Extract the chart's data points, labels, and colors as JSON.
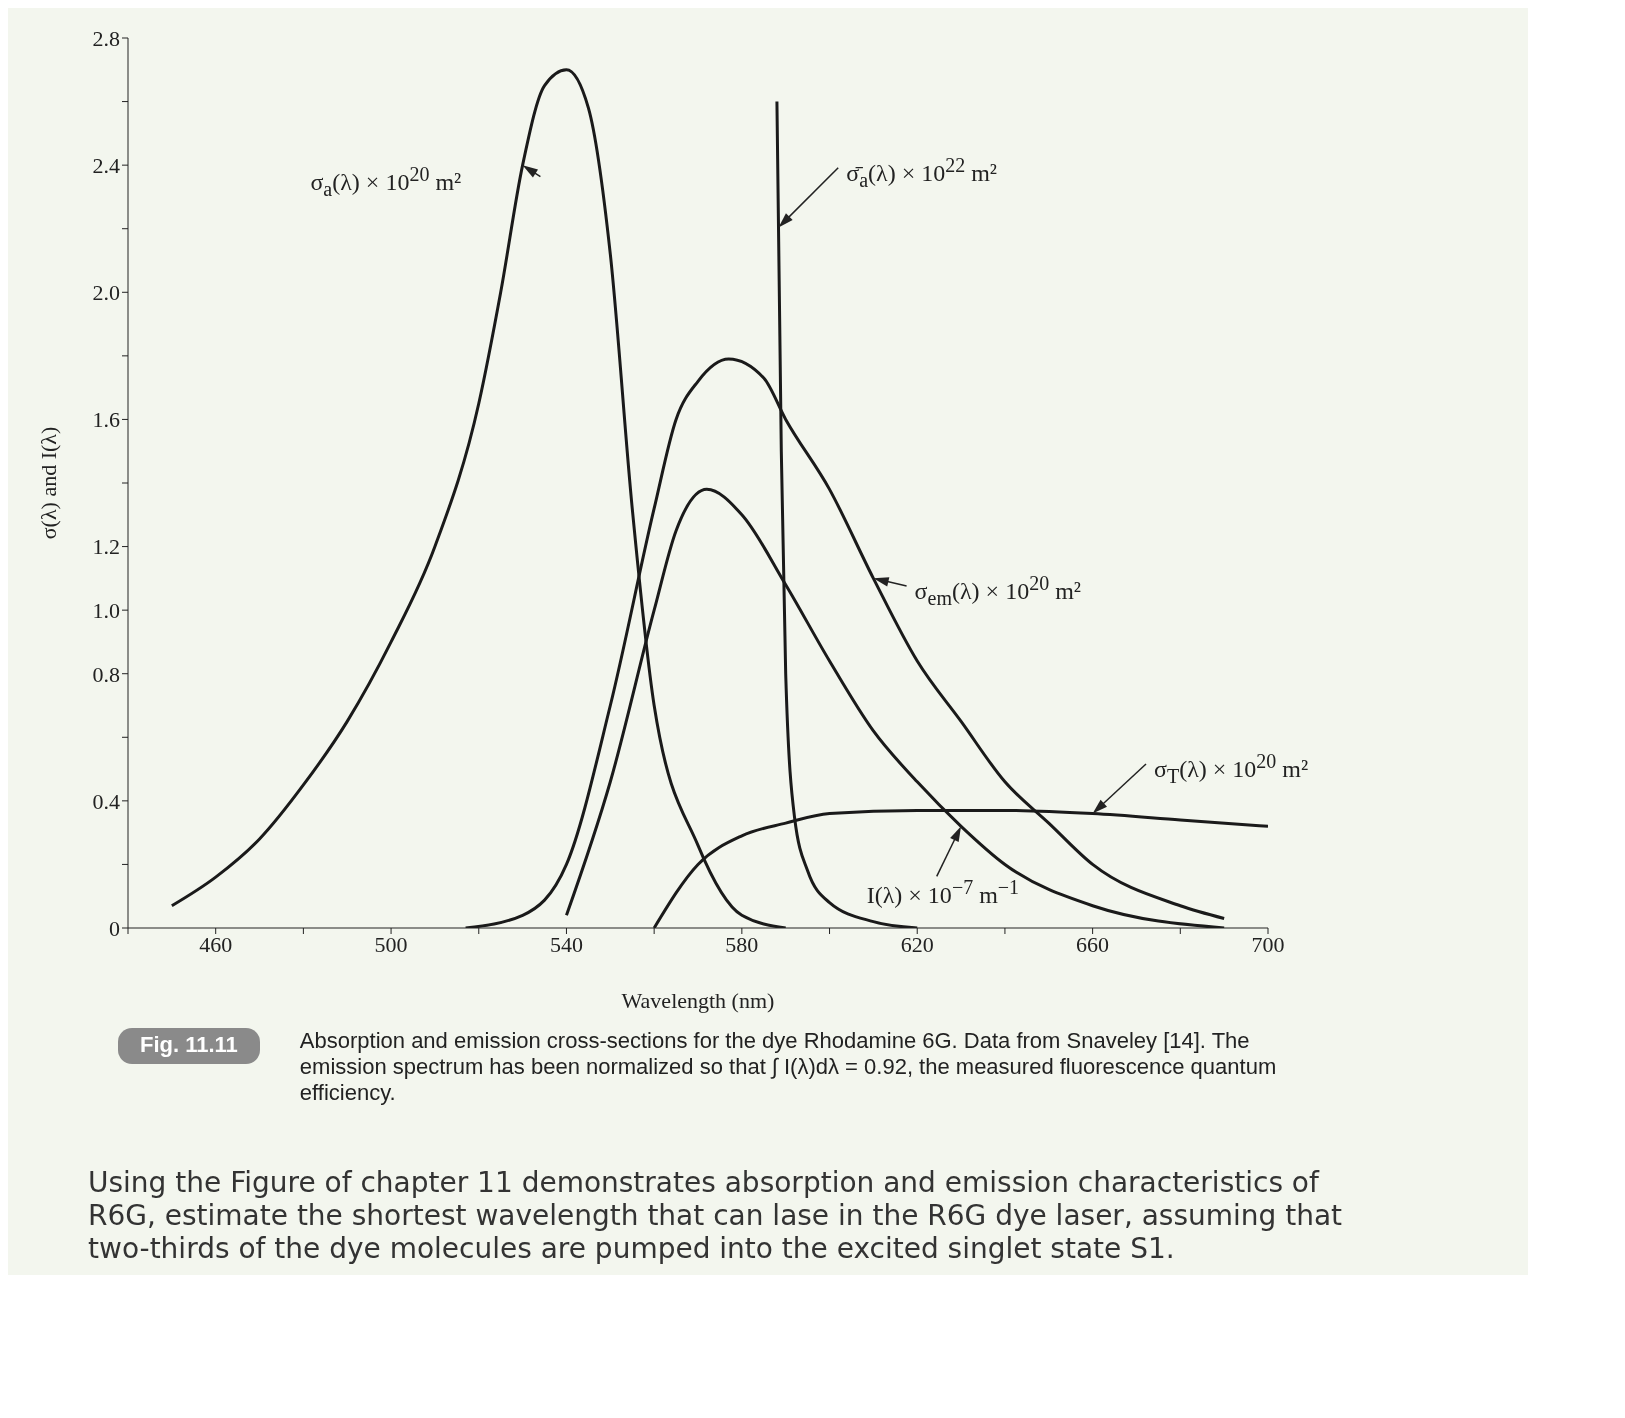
{
  "chart_data": {
    "type": "line",
    "xlabel": "Wavelength (nm)",
    "ylabel": "σ(λ) and I(λ)",
    "xlim": [
      440,
      700
    ],
    "xticks": [
      {
        "value": 440,
        "label": null
      },
      460,
      {
        "value": 480,
        "label": null
      },
      500,
      {
        "value": 520,
        "label": null
      },
      540,
      {
        "value": 560,
        "label": null
      },
      580,
      {
        "value": 600,
        "label": null
      },
      620,
      {
        "value": 640,
        "label": null
      },
      660,
      {
        "value": 680,
        "label": null
      },
      700
    ],
    "ylim": [
      0,
      2.8
    ],
    "yticks": [
      0,
      {
        "value": 0.2,
        "label": null
      },
      0.4,
      {
        "value": 0.6,
        "label": null
      },
      0.8,
      {
        "value": 1,
        "label": "1.0"
      },
      1.2,
      {
        "value": 1.4,
        "label": null
      },
      1.6,
      {
        "value": 1.8,
        "label": null
      },
      {
        "value": 2,
        "label": "2.0"
      },
      {
        "value": 2.2,
        "label": null
      },
      2.4,
      {
        "value": 2.6,
        "label": null
      },
      2.8
    ],
    "series": [
      {
        "name": "σ$_{a}$(λ) × 10$^{20}$ m²",
        "color": "#1a1a1a",
        "x": [
          450,
          460,
          470,
          480,
          490,
          500,
          510,
          520,
          525,
          530,
          535,
          540,
          545,
          550,
          555,
          560,
          570,
          580,
          590
        ],
        "values": [
          0.07,
          0.16,
          0.28,
          0.45,
          0.65,
          0.9,
          1.2,
          1.65,
          2.0,
          2.4,
          2.65,
          2.7,
          2.58,
          2.12,
          1.32,
          0.7,
          0.26,
          0.04,
          0
        ]
      },
      {
        "name": "σ̄$_{a}$(λ) × 10$^{22}$ m²",
        "color": "#1a1a1a",
        "x": [
          588,
          589,
          590,
          592,
          595,
          600,
          610,
          620
        ],
        "values": [
          2.6,
          1.5,
          0.8,
          0.35,
          0.18,
          0.08,
          0.02,
          0
        ]
      },
      {
        "name": "σ$_{em}$(λ) × 10$^{20}$ m²",
        "color": "#1a1a1a",
        "x": [
          517,
          530,
          540,
          550,
          560,
          565,
          570,
          577,
          585,
          590,
          600,
          610,
          620,
          630,
          640,
          650,
          660,
          680,
          690
        ],
        "values": [
          0,
          0.04,
          0.2,
          0.7,
          1.32,
          1.6,
          1.72,
          1.79,
          1.73,
          1.6,
          1.38,
          1.1,
          0.84,
          0.65,
          0.46,
          0.33,
          0.2,
          0.07,
          0.03
        ]
      },
      {
        "name": "I(λ) × 10$^{−7}$ m$^{−1}$",
        "color": "#1a1a1a",
        "x": [
          540,
          550,
          560,
          565,
          572,
          580,
          590,
          600,
          610,
          620,
          630,
          640,
          660,
          690
        ],
        "values": [
          0.04,
          0.46,
          1.0,
          1.25,
          1.38,
          1.3,
          1.08,
          0.84,
          0.62,
          0.46,
          0.32,
          0.2,
          0.07,
          0
        ]
      },
      {
        "name": "σ$_{T}$(λ) × 10$^{20}$ m²",
        "color": "#1a1a1a",
        "x": [
          560,
          570,
          580,
          590,
          600,
          620,
          640,
          660,
          680,
          700
        ],
        "values": [
          0,
          0.2,
          0.29,
          0.33,
          0.36,
          0.37,
          0.37,
          0.36,
          0.34,
          0.32
        ]
      }
    ],
    "annotations": [
      "Fig. 11.11",
      "Absorption and emission cross-sections for the dye Rhodamine 6G. Data from Snaveley [14]. The emission spectrum has been normalized so that ∫ I(λ)dλ = 0.92, the measured fluorescence quantum efficiency.",
      "Using the Figure of chapter 11 demonstrates absorption and emission characteristics of R6G, estimate the shortest wavelength that can lase in the R6G dye laser, assuming that two-thirds of the dye molecules are pumped into the excited singlet state S1."
    ]
  }
}
